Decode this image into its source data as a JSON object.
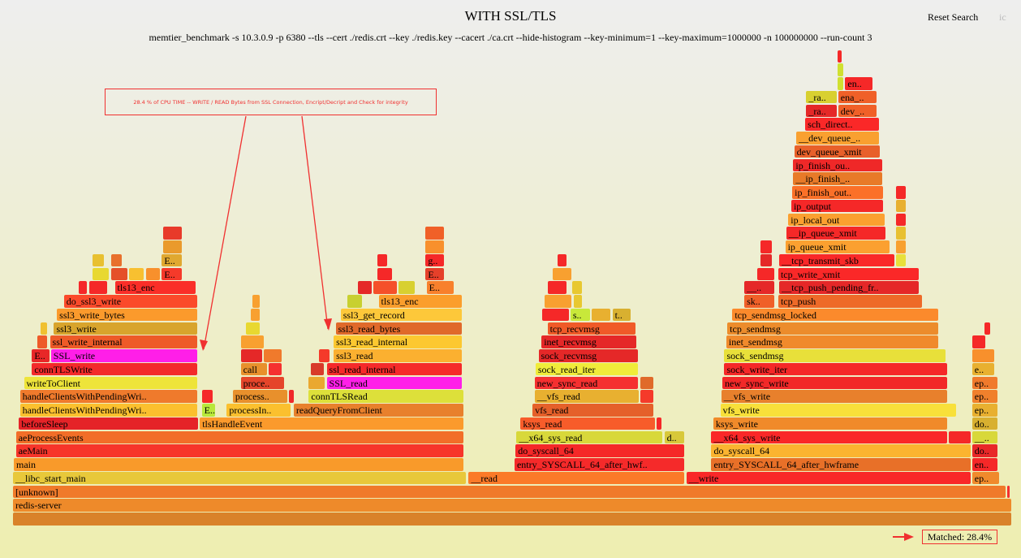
{
  "header": {
    "title": "WITH SSL/TLS",
    "subtitle": "memtier_benchmark -s 10.3.0.9 -p 6380 --tls --cert ./redis.crt --key ./redis.key --cacert ./ca.crt --hide-histogram --key-minimum=1 --key-maximum=1000000 -n 100000000 --run-count 3",
    "reset_search": "Reset Search",
    "ic": "ic"
  },
  "annotation": {
    "text": "28.4 % of CPU TIME -- WRITE / READ Bytes from SSL Connection, Encript/Decript and Check for integrity",
    "color": "#f03030"
  },
  "footer": {
    "matched": "Matched: 28.4%"
  },
  "colors": {
    "search_match": "#ff1fe8",
    "annotation": "#f03030"
  },
  "chart_data": {
    "type": "flamegraph",
    "x_unit": "percent of samples",
    "search_matches": [
      "SSL_write",
      "SSL_read"
    ],
    "matched_percent": 28.4,
    "frames_columns": [
      "name",
      "depth",
      "start_pct",
      "end_pct",
      "color"
    ],
    "frames": [
      [
        "",
        0,
        0,
        100,
        "#d9822a"
      ],
      [
        "redis-server",
        1,
        0,
        100,
        "#ee8a2a"
      ],
      [
        "[unknown]",
        2,
        0,
        99.4,
        "#f07a2a"
      ],
      [
        "",
        2,
        99.5,
        99.8,
        "#f53030"
      ],
      [
        "__libc_start_main",
        3,
        0,
        45.4,
        "#e8c83a"
      ],
      [
        "__read",
        3,
        45.6,
        67.3,
        "#fb7a28"
      ],
      [
        "__write",
        3,
        67.4,
        95.9,
        "#f92828"
      ],
      [
        "ep..",
        3,
        96.0,
        98.8,
        "#f08a2c"
      ],
      [
        "main",
        4,
        0.08,
        45.2,
        "#f99a2a"
      ],
      [
        "entry_SYSCALL_64_after_hwf..",
        4,
        50.2,
        67.3,
        "#f52a2a"
      ],
      [
        "entry_SYSCALL_64_after_hwframe",
        4,
        69.9,
        95.9,
        "#e87028"
      ],
      [
        "en..",
        4,
        96.0,
        98.6,
        "#f52828"
      ],
      [
        "aeMain",
        5,
        0.3,
        45.2,
        "#f7352a"
      ],
      [
        "do_syscall_64",
        5,
        50.3,
        67.3,
        "#f52828"
      ],
      [
        "do_syscall_64",
        5,
        69.9,
        95.9,
        "#fbb430"
      ],
      [
        "do..",
        5,
        96.0,
        98.6,
        "#e82828"
      ],
      [
        "aeProcessEvents",
        6,
        0.3,
        45.2,
        "#f26e28"
      ],
      [
        "__x64_sys_read",
        6,
        50.4,
        65.1,
        "#d8d83a"
      ],
      [
        "d..",
        6,
        65.2,
        67.3,
        "#d8c83a"
      ],
      [
        "__x64_sys_write",
        6,
        69.9,
        93.6,
        "#fa2828"
      ],
      [
        "",
        6,
        93.7,
        95.9,
        "#f52828"
      ],
      [
        "__..",
        6,
        96.0,
        98.6,
        "#d8d83a"
      ],
      [
        "beforeSleep",
        7,
        0.6,
        18.6,
        "#e52328"
      ],
      [
        "tlsHandleEvent",
        7,
        18.7,
        45.2,
        "#fb9a2c"
      ],
      [
        "ksys_read",
        7,
        50.8,
        64.3,
        "#f75c2a"
      ],
      [
        "",
        7,
        64.4,
        65.0,
        "#f52828"
      ],
      [
        "ksys_write",
        7,
        70.1,
        93.6,
        "#f08a2a"
      ],
      [
        "do..",
        7,
        96.0,
        98.6,
        "#d8b030"
      ],
      [
        "handleClientsWithPendingWri..",
        8,
        0.7,
        18.5,
        "#fbc02e"
      ],
      [
        "E..",
        8,
        18.9,
        20.3,
        "#b8e83a"
      ],
      [
        "processIn..",
        8,
        21.4,
        27.9,
        "#fbc02e"
      ],
      [
        "readQueryFromClient",
        8,
        28.1,
        45.2,
        "#e8802c"
      ],
      [
        "vfs_read",
        8,
        52.0,
        64.2,
        "#e5602a"
      ],
      [
        "vfs_write",
        8,
        70.8,
        94.5,
        "#f8e03a"
      ],
      [
        "ep..",
        8,
        96.0,
        98.6,
        "#e8b030"
      ],
      [
        "handleClientsWithPendingWri..",
        9,
        0.7,
        18.5,
        "#ef7a2c"
      ],
      [
        "",
        9,
        18.9,
        20.1,
        "#f52828"
      ],
      [
        "process..",
        9,
        22.0,
        27.5,
        "#e8902c"
      ],
      [
        "",
        9,
        27.6,
        28.2,
        "#f02828"
      ],
      [
        "connTLSRead",
        9,
        29.6,
        45.2,
        "#dde03a"
      ],
      [
        "__vfs_read",
        9,
        52.2,
        62.7,
        "#e8b030"
      ],
      [
        "",
        9,
        62.8,
        64.2,
        "#f53a2a"
      ],
      [
        "__vfs_write",
        9,
        70.9,
        93.6,
        "#e8802c"
      ],
      [
        "ep..",
        9,
        96.0,
        98.6,
        "#f0802c"
      ],
      [
        "writeToClient",
        10,
        1.1,
        18.5,
        "#eee43a"
      ],
      [
        "proce..",
        10,
        22.8,
        27.2,
        "#e5452a"
      ],
      [
        "",
        10,
        29.6,
        31.3,
        "#eaa830"
      ],
      [
        "SSL_read",
        10,
        31.4,
        45.0,
        "#ff1fe8"
      ],
      [
        "new_sync_read",
        10,
        52.2,
        62.6,
        "#f53030"
      ],
      [
        "",
        10,
        62.8,
        64.2,
        "#e06a2a"
      ],
      [
        "new_sync_write",
        10,
        71.0,
        93.6,
        "#f22828"
      ],
      [
        "ep..",
        10,
        96.0,
        98.6,
        "#f07a2c"
      ],
      [
        "connTLSWrite",
        11,
        1.9,
        18.5,
        "#f32a2a"
      ],
      [
        "call",
        11,
        22.8,
        25.5,
        "#e8902c"
      ],
      [
        "",
        11,
        25.6,
        27.0,
        "#f53030"
      ],
      [
        "",
        11,
        29.8,
        31.2,
        "#d83a2a"
      ],
      [
        "ssl_read_internal",
        11,
        31.4,
        45.0,
        "#f52a2a"
      ],
      [
        "sock_read_iter",
        11,
        52.3,
        62.6,
        "#f0ec3a"
      ],
      [
        "sock_write_iter",
        11,
        71.2,
        93.6,
        "#f52828"
      ],
      [
        "e..",
        11,
        96.0,
        98.3,
        "#e8b030"
      ],
      [
        "E..",
        12,
        1.9,
        3.7,
        "#e82828"
      ],
      [
        "SSL_write",
        12,
        3.8,
        18.5,
        "#ff1fe8"
      ],
      [
        "",
        12,
        22.8,
        25.0,
        "#e52828"
      ],
      [
        "",
        12,
        25.1,
        27.0,
        "#f07a2c"
      ],
      [
        "",
        12,
        30.6,
        31.8,
        "#f53a2a"
      ],
      [
        "ssl3_read",
        12,
        32.1,
        45.0,
        "#fbb030"
      ],
      [
        "sock_recvmsg",
        12,
        52.6,
        62.6,
        "#e52828"
      ],
      [
        "sock_sendmsg",
        12,
        71.2,
        93.4,
        "#e8e03a"
      ],
      [
        "",
        12,
        96.0,
        98.3,
        "#f8902c"
      ],
      [
        "",
        13,
        2.4,
        3.5,
        "#ee5a28"
      ],
      [
        "ssl_write_internal",
        13,
        3.7,
        18.5,
        "#ee5a28"
      ],
      [
        "",
        13,
        22.8,
        25.2,
        "#f8a030"
      ],
      [
        "ssl3_read_internal",
        13,
        32.1,
        45.0,
        "#fcc830"
      ],
      [
        "inet_recvmsg",
        13,
        52.9,
        62.5,
        "#e52828"
      ],
      [
        "inet_sendmsg",
        13,
        71.4,
        92.7,
        "#f08a2c"
      ],
      [
        "",
        13,
        96.0,
        97.4,
        "#f52828"
      ],
      [
        "",
        14,
        2.8,
        3.5,
        "#f0c030"
      ],
      [
        "ssl3_write",
        14,
        4.1,
        18.5,
        "#d8a42c"
      ],
      [
        "",
        14,
        23.3,
        24.8,
        "#e8d830"
      ],
      [
        "ssl3_read_bytes",
        14,
        32.3,
        45.0,
        "#e0692a"
      ],
      [
        "tcp_recvmsg",
        14,
        53.5,
        62.4,
        "#f05a28"
      ],
      [
        "tcp_sendmsg",
        14,
        71.5,
        92.7,
        "#ec8c2c"
      ],
      [
        "",
        14,
        97.2,
        97.9,
        "#f52828"
      ],
      [
        "ssl3_write_bytes",
        15,
        4.4,
        18.5,
        "#fb9a2c"
      ],
      [
        "",
        15,
        23.8,
        24.8,
        "#f8a030"
      ],
      [
        "ssl3_get_record",
        15,
        32.8,
        45.0,
        "#fdc83a"
      ],
      [
        "",
        15,
        53.0,
        55.7,
        "#f52828"
      ],
      [
        "s..",
        15,
        55.8,
        57.8,
        "#c8e83a"
      ],
      [
        "",
        15,
        57.9,
        59.9,
        "#e8b030"
      ],
      [
        "t..",
        15,
        60.0,
        61.9,
        "#d8b030"
      ],
      [
        "tcp_sendmsg_locked",
        15,
        72.0,
        92.7,
        "#fb8a2c"
      ],
      [
        "do_ssl3_write",
        16,
        5.1,
        18.5,
        "#fb4a2a"
      ],
      [
        "",
        16,
        24.0,
        24.8,
        "#f8a030"
      ],
      [
        "",
        16,
        33.5,
        35.0,
        "#c8d030"
      ],
      [
        "tls13_enc",
        16,
        36.6,
        45.0,
        "#fb9e2c"
      ],
      [
        "",
        16,
        53.2,
        56.0,
        "#f8a030"
      ],
      [
        "",
        16,
        56.1,
        57.0,
        "#e8c830"
      ],
      [
        "sk..",
        16,
        73.2,
        76.3,
        "#f06028"
      ],
      [
        "tcp_push",
        16,
        76.6,
        91.1,
        "#ee6a28"
      ],
      [
        "",
        17,
        6.6,
        7.5,
        "#f52828"
      ],
      [
        "",
        17,
        7.6,
        9.5,
        "#f52828"
      ],
      [
        "tls13_enc",
        17,
        10.2,
        18.4,
        "#fa2e28"
      ],
      [
        "",
        17,
        34.5,
        36.0,
        "#e52828"
      ],
      [
        "",
        17,
        36.1,
        38.5,
        "#f5502a"
      ],
      [
        "",
        17,
        38.6,
        40.3,
        "#d8d030"
      ],
      [
        "E..",
        17,
        41.4,
        44.2,
        "#f8802c"
      ],
      [
        "",
        17,
        53.5,
        55.5,
        "#f52828"
      ],
      [
        "",
        17,
        56.0,
        57.0,
        "#e8c830"
      ],
      [
        "__..",
        17,
        73.2,
        76.3,
        "#e52828"
      ],
      [
        "__tcp_push_pending_fr..",
        17,
        76.7,
        90.7,
        "#e52828"
      ],
      [
        "",
        18,
        8.0,
        9.7,
        "#e8d830"
      ],
      [
        "",
        18,
        9.8,
        11.5,
        "#e5502a"
      ],
      [
        "",
        18,
        11.6,
        13.2,
        "#f8c030"
      ],
      [
        "",
        18,
        13.3,
        14.8,
        "#f8902c"
      ],
      [
        "E..",
        18,
        14.9,
        17.0,
        "#f53a2a"
      ],
      [
        "",
        18,
        36.5,
        38.0,
        "#f52828"
      ],
      [
        "E..",
        18,
        41.3,
        43.2,
        "#e5402a"
      ],
      [
        "",
        18,
        54.0,
        56.0,
        "#f8a030"
      ],
      [
        "",
        18,
        74.5,
        76.3,
        "#f52828"
      ],
      [
        "tcp_write_xmit",
        18,
        76.6,
        90.7,
        "#fa2828"
      ],
      [
        "",
        19,
        8.0,
        9.2,
        "#e8c030"
      ],
      [
        "",
        19,
        9.8,
        11.0,
        "#e8702c"
      ],
      [
        "E..",
        19,
        14.9,
        17.0,
        "#e0a830"
      ],
      [
        "",
        19,
        36.5,
        37.5,
        "#f52828"
      ],
      [
        "g..",
        19,
        41.3,
        43.2,
        "#f52828"
      ],
      [
        "",
        19,
        54.5,
        55.5,
        "#f52828"
      ],
      [
        "",
        19,
        74.8,
        76.0,
        "#e52828"
      ],
      [
        "__tcp_transmit_skb",
        19,
        76.7,
        88.3,
        "#fa2828"
      ],
      [
        "",
        19,
        88.4,
        89.4,
        "#e8e03a"
      ],
      [
        "",
        20,
        15.0,
        17.0,
        "#ea9a2c"
      ],
      [
        "",
        20,
        41.3,
        43.2,
        "#f8902c"
      ],
      [
        "",
        20,
        74.8,
        76.0,
        "#f52828"
      ],
      [
        "ip_queue_xmit",
        20,
        77.3,
        87.8,
        "#fba030"
      ],
      [
        "",
        20,
        88.4,
        89.4,
        "#f8a030"
      ],
      [
        "",
        21,
        15.0,
        17.0,
        "#e83a2a"
      ],
      [
        "",
        21,
        41.3,
        43.2,
        "#f06028"
      ],
      [
        "__ip_queue_xmit",
        21,
        77.4,
        87.4,
        "#f52828"
      ],
      [
        "",
        21,
        88.4,
        89.4,
        "#e8c030"
      ],
      [
        "ip_local_out",
        22,
        77.6,
        87.3,
        "#fba030"
      ],
      [
        "",
        22,
        88.4,
        89.4,
        "#f52828"
      ],
      [
        "ip_output",
        23,
        77.9,
        87.2,
        "#f52828"
      ],
      [
        "",
        23,
        88.4,
        89.4,
        "#e8b030"
      ],
      [
        "ip_finish_out..",
        24,
        78.0,
        87.2,
        "#fb7028"
      ],
      [
        "",
        24,
        88.4,
        89.4,
        "#f52828"
      ],
      [
        "__ip_finish_..",
        25,
        78.1,
        87.1,
        "#e87a28"
      ],
      [
        "ip_finish_ou..",
        26,
        78.1,
        87.1,
        "#ef2828"
      ],
      [
        "dev_queue_xmit",
        27,
        78.2,
        86.8,
        "#e8602a"
      ],
      [
        "__dev_queue_..",
        28,
        78.4,
        86.8,
        "#f9a030"
      ],
      [
        "sch_direct..",
        29,
        79.3,
        86.8,
        "#fa2828"
      ],
      [
        "_ra..",
        30,
        79.4,
        82.5,
        "#e52828"
      ],
      [
        "dev_..",
        30,
        82.6,
        86.5,
        "#f06028"
      ],
      [
        "_ra..",
        31,
        79.4,
        82.5,
        "#d8d030"
      ],
      [
        "ena_..",
        31,
        82.6,
        86.5,
        "#f06028"
      ],
      [
        "",
        32,
        82.5,
        83.2,
        "#d0e030"
      ],
      [
        "en..",
        32,
        83.3,
        86.1,
        "#f52828"
      ],
      [
        "",
        33,
        82.5,
        83.2,
        "#d0e030"
      ],
      [
        "",
        34,
        82.5,
        83.0,
        "#f52828"
      ]
    ]
  }
}
